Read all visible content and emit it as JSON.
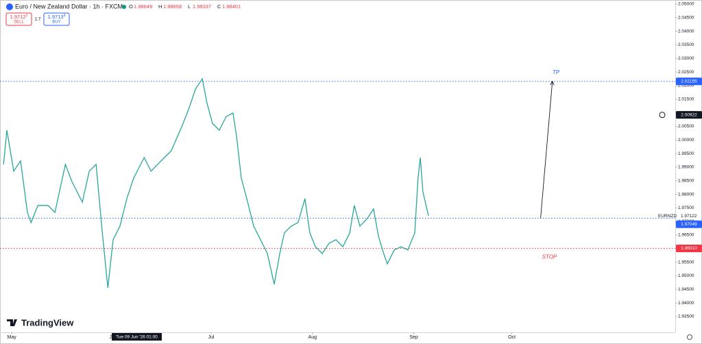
{
  "header": {
    "symbol": "Euro / New Zealand Dollar · 1h · FXCM",
    "ohlc": [
      {
        "key": "O",
        "value": "1.98649"
      },
      {
        "key": "H",
        "value": "1.98658"
      },
      {
        "key": "L",
        "value": "1.98337"
      },
      {
        "key": "C",
        "value": "1.98401"
      }
    ],
    "sell": {
      "price": "1.9712",
      "sup": "1",
      "label": "SELL"
    },
    "spread": "1.7",
    "buy": {
      "price": "1.9713",
      "sup": "9",
      "label": "BUY"
    },
    "logo": "TradingView",
    "crosshair_time": "Tue 09 Jun '26   01:00"
  },
  "chart_data": {
    "type": "line",
    "series": [
      {
        "name": "EURNZD",
        "color": "#26a69a",
        "x": [
          -2.5,
          -1.5,
          0.6,
          2.7,
          4.8,
          5.9,
          8,
          11.1,
          13.2,
          16.4,
          18.4,
          21.6,
          23.7,
          25.8,
          27.5,
          29.4,
          31,
          33.1,
          35.2,
          37.3,
          40.5,
          42.6,
          45.7,
          48.8,
          52,
          54.1,
          56.2,
          58.3,
          59.7,
          61.4,
          63.5,
          65.6,
          67.7,
          68.8,
          70.2,
          71.9,
          74,
          76.1,
          78.2,
          80.3,
          82,
          83.4,
          85.5,
          87.6,
          89.7,
          91.2,
          92.9,
          95,
          97.1,
          99.2,
          101.3,
          103.4,
          104.8,
          106.5,
          108.6,
          110.7,
          112.2,
          113.8,
          114.9,
          117,
          119.1,
          121.2,
          123.3,
          124.3,
          125,
          125.8,
          127.5
        ],
        "values": [
          1.991,
          2.0036,
          1.9885,
          1.9923,
          1.9733,
          1.9696,
          1.9759,
          1.9759,
          1.9733,
          1.991,
          1.9847,
          1.9771,
          1.9885,
          1.991,
          1.9683,
          1.9456,
          1.9633,
          1.9683,
          1.9784,
          1.986,
          1.9935,
          1.9885,
          1.9923,
          1.996,
          2.0049,
          2.0112,
          2.0187,
          2.0225,
          2.0137,
          2.0061,
          2.0036,
          2.0086,
          2.0099,
          2.0011,
          1.986,
          1.9784,
          1.9683,
          1.9633,
          1.9582,
          1.9469,
          1.9582,
          1.9658,
          1.9683,
          1.9696,
          1.9784,
          1.9658,
          1.9607,
          1.9582,
          1.962,
          1.9633,
          1.9607,
          1.9658,
          1.9759,
          1.9683,
          1.9708,
          1.9746,
          1.9645,
          1.9582,
          1.9544,
          1.9595,
          1.9607,
          1.9595,
          1.9658,
          1.986,
          1.9935,
          1.9809,
          1.9721
        ]
      }
    ],
    "xlim": [
      -3.6,
      203
    ],
    "ylim": [
      1.9292,
      2.0515
    ],
    "xticks": [
      {
        "value": 0,
        "label": "May"
      },
      {
        "value": 31,
        "label": "Jun"
      },
      {
        "value": 61,
        "label": "Jul"
      },
      {
        "value": 92,
        "label": "Aug"
      },
      {
        "value": 123,
        "label": "Sep"
      },
      {
        "value": 153,
        "label": "Oct"
      }
    ],
    "yticks": [
      {
        "value": 1.935,
        "label": "1.93500"
      },
      {
        "value": 1.94,
        "label": "1.94000"
      },
      {
        "value": 1.945,
        "label": "1.94500"
      },
      {
        "value": 1.95,
        "label": "1.95000"
      },
      {
        "value": 1.955,
        "label": "1.95500"
      },
      {
        "value": 1.96,
        "label": "1.96000"
      },
      {
        "value": 1.965,
        "label": "1.96500"
      },
      {
        "value": 1.97,
        "label": "1.97000"
      },
      {
        "value": 1.975,
        "label": "1.97500"
      },
      {
        "value": 1.98,
        "label": "1.98000"
      },
      {
        "value": 1.985,
        "label": "1.98500"
      },
      {
        "value": 1.99,
        "label": "1.99000"
      },
      {
        "value": 1.995,
        "label": "1.99500"
      },
      {
        "value": 2.0,
        "label": "2.00000"
      },
      {
        "value": 2.005,
        "label": "2.00500"
      },
      {
        "value": 2.01,
        "label": "2.01000"
      },
      {
        "value": 2.015,
        "label": "2.01500"
      },
      {
        "value": 2.02,
        "label": "2.02000"
      },
      {
        "value": 2.025,
        "label": "2.02500"
      },
      {
        "value": 2.03,
        "label": "2.03000"
      },
      {
        "value": 2.035,
        "label": "2.03500"
      },
      {
        "value": 2.04,
        "label": "2.04000"
      },
      {
        "value": 2.045,
        "label": "2.04500"
      },
      {
        "value": 2.05,
        "label": "2.05000"
      }
    ],
    "levels": [
      {
        "value": 2.02155,
        "color": "#2962ff"
      },
      {
        "value": 1.97122,
        "color": "#2962ff",
        "name": "EURNZD",
        "label": "1.97122"
      },
      {
        "value": 1.9601,
        "color": "#f23645"
      }
    ],
    "price_tags": [
      {
        "value": 2.02155,
        "label": "2.02155",
        "color": "#2962ff"
      },
      {
        "value": 2.00922,
        "label": "2.00922",
        "color": "#131722"
      },
      {
        "value": 1.97049,
        "label": "1.97049",
        "color": "#2962ff"
      },
      {
        "value": 1.9601,
        "label": "1.96010",
        "color": "#f23645"
      }
    ],
    "arrow": {
      "x": [
        161.8,
        165.4
      ],
      "y": [
        1.97122,
        2.02155
      ]
    },
    "annotations": [
      {
        "text": "TP",
        "x": 166.5,
        "y": 2.0248,
        "color": "#2962ff"
      },
      {
        "text": "STOP",
        "x": 164.5,
        "y": 1.9568,
        "color": "#f23645"
      }
    ]
  }
}
